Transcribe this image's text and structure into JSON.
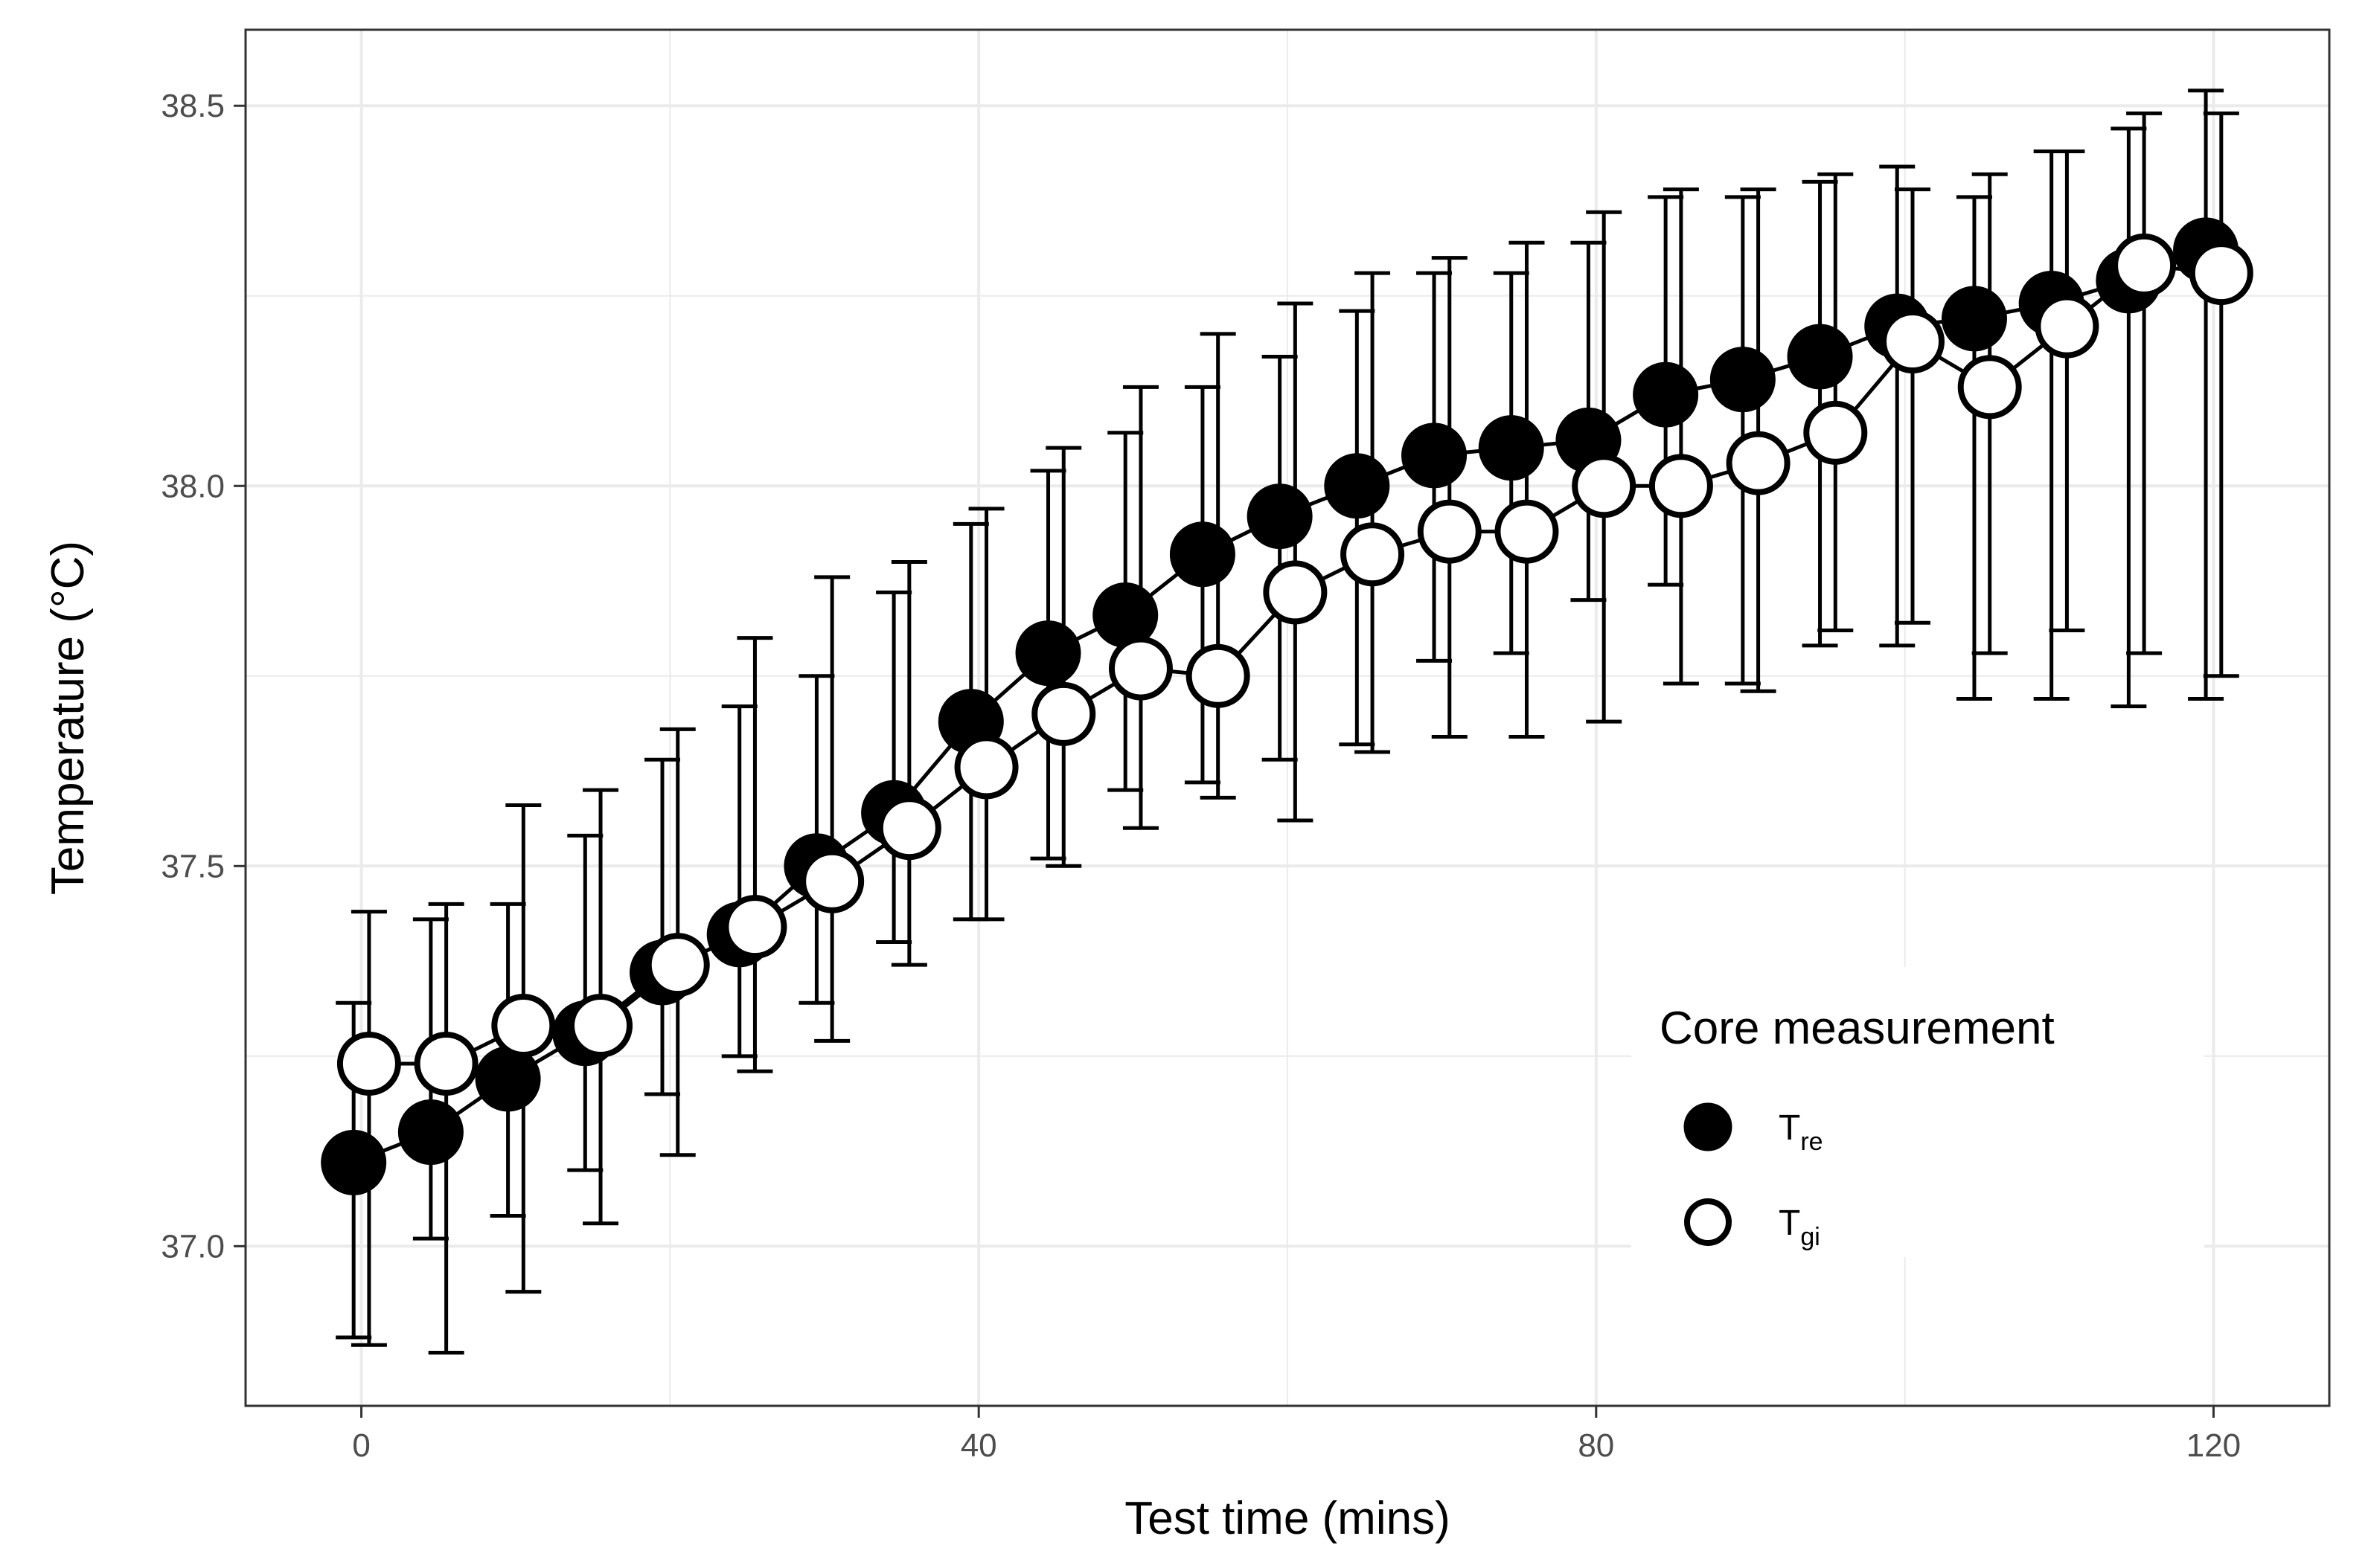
{
  "chart_data": {
    "type": "scatter",
    "title": "",
    "xlabel": "Test time (mins)",
    "ylabel": "Temperature (°C)",
    "xlim": [
      -7.5,
      127.5
    ],
    "ylim": [
      36.79,
      38.6
    ],
    "x_ticks": [
      0,
      40,
      80,
      120
    ],
    "x_tick_labels": [
      "0",
      "40",
      "80",
      "120"
    ],
    "y_ticks": [
      37.0,
      37.5,
      38.0,
      38.5
    ],
    "y_tick_labels": [
      "37.0",
      "37.5",
      "38.0",
      "38.5"
    ],
    "grid": true,
    "legend": {
      "title": "Core measurement",
      "position": "bottom-right",
      "entries": [
        {
          "main": "T",
          "sub": "re",
          "marker": "filled"
        },
        {
          "main": "T",
          "sub": "gi",
          "marker": "open"
        }
      ]
    },
    "series": [
      {
        "name": "Tre",
        "marker": "filled",
        "x_offset": -0.5,
        "x": [
          0,
          5,
          10,
          15,
          20,
          25,
          30,
          35,
          40,
          45,
          50,
          55,
          60,
          65,
          70,
          75,
          80,
          85,
          90,
          95,
          100,
          105,
          110,
          115,
          120
        ],
        "y": [
          37.11,
          37.15,
          37.22,
          37.28,
          37.36,
          37.41,
          37.5,
          37.57,
          37.69,
          37.78,
          37.83,
          37.91,
          37.96,
          38.0,
          38.04,
          38.05,
          38.06,
          38.12,
          38.14,
          38.17,
          38.21,
          38.22,
          38.24,
          38.27,
          38.31
        ],
        "lower": [
          36.88,
          37.01,
          37.04,
          37.1,
          37.2,
          37.25,
          37.32,
          37.4,
          37.43,
          37.51,
          37.6,
          37.61,
          37.64,
          37.66,
          37.77,
          37.78,
          37.85,
          37.87,
          37.74,
          37.79,
          37.79,
          37.72,
          37.72,
          37.71,
          37.72
        ],
        "upper": [
          37.32,
          37.43,
          37.45,
          37.54,
          37.64,
          37.71,
          37.75,
          37.86,
          37.95,
          38.02,
          38.07,
          38.13,
          38.17,
          38.23,
          38.28,
          38.28,
          38.32,
          38.38,
          38.38,
          38.4,
          38.42,
          38.38,
          38.44,
          38.47,
          38.52
        ]
      },
      {
        "name": "Tgi",
        "marker": "open",
        "x_offset": 0.5,
        "x": [
          0,
          5,
          10,
          15,
          20,
          25,
          30,
          35,
          40,
          45,
          50,
          55,
          60,
          65,
          70,
          75,
          80,
          85,
          90,
          95,
          100,
          105,
          110,
          115,
          120
        ],
        "y": [
          37.24,
          37.24,
          37.29,
          37.29,
          37.37,
          37.42,
          37.48,
          37.55,
          37.63,
          37.7,
          37.76,
          37.75,
          37.86,
          37.91,
          37.94,
          37.94,
          38.0,
          38.0,
          38.03,
          38.07,
          38.19,
          38.13,
          38.21,
          38.29,
          38.28
        ],
        "lower": [
          36.87,
          36.86,
          36.94,
          37.03,
          37.12,
          37.23,
          37.27,
          37.37,
          37.43,
          37.5,
          37.55,
          37.59,
          37.56,
          37.65,
          37.67,
          37.67,
          37.69,
          37.74,
          37.73,
          37.81,
          37.82,
          37.78,
          37.81,
          37.78,
          37.75
        ],
        "upper": [
          37.44,
          37.45,
          37.58,
          37.6,
          37.68,
          37.8,
          37.88,
          37.9,
          37.97,
          38.05,
          38.13,
          38.2,
          38.24,
          38.28,
          38.3,
          38.32,
          38.36,
          38.39,
          38.39,
          38.41,
          38.39,
          38.41,
          38.44,
          38.49,
          38.49
        ]
      }
    ]
  }
}
